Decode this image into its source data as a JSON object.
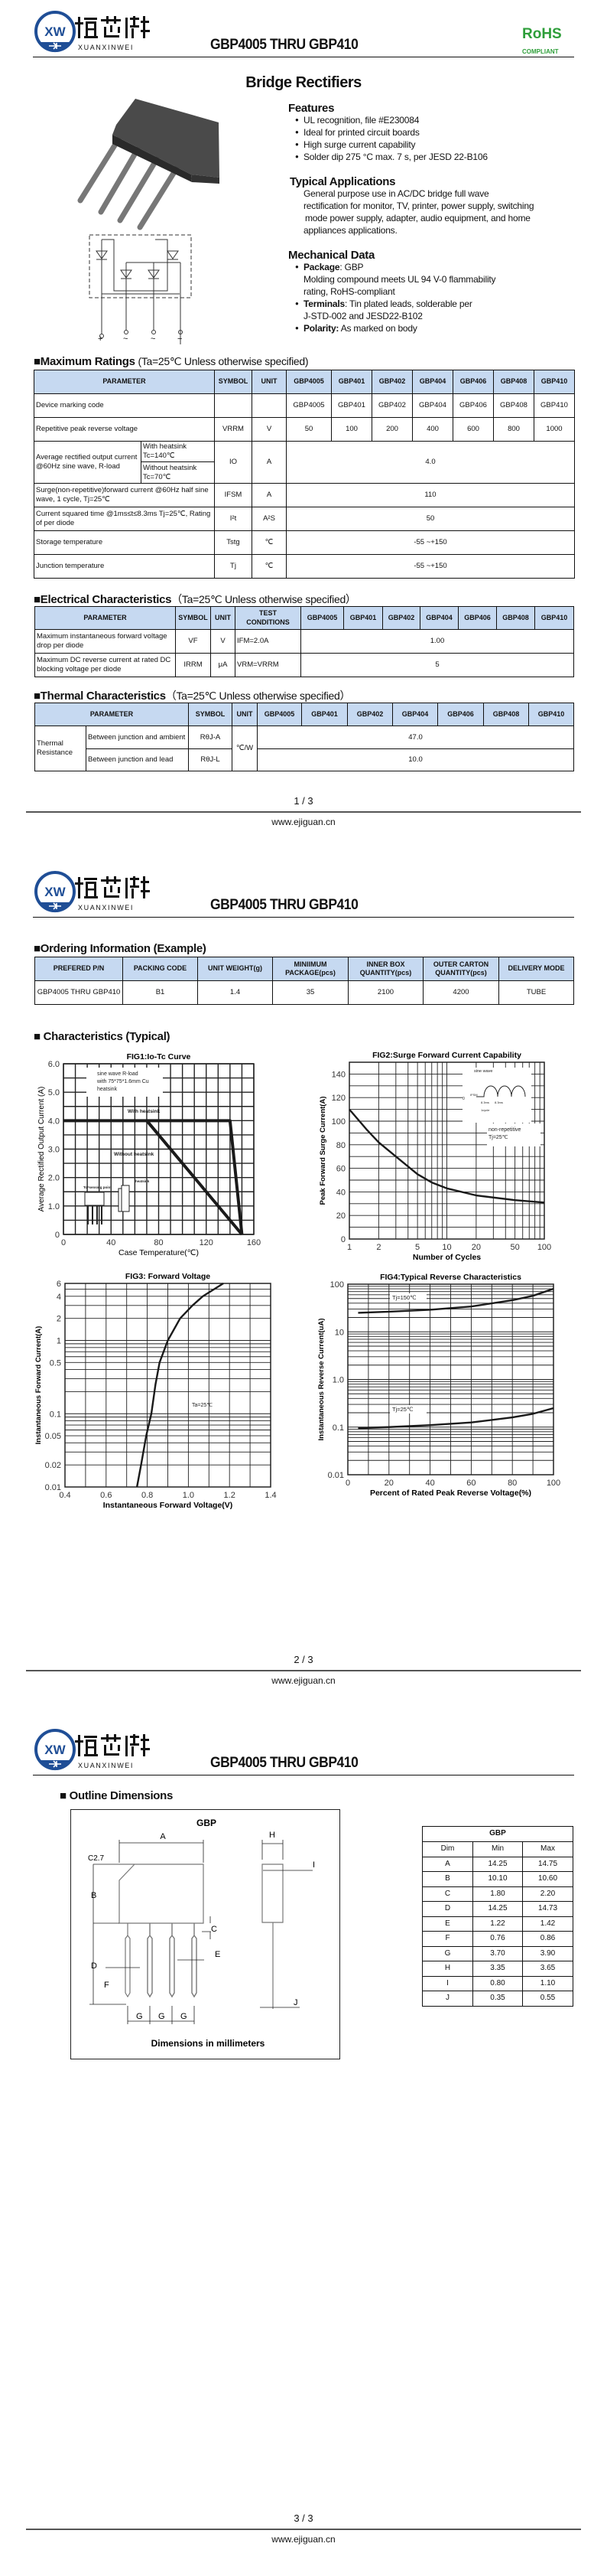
{
  "header": {
    "logo_mark": "XW",
    "logo_cn": "烜芯微",
    "logo_en": "XUANXINWEI",
    "title": "GBP4005 THRU GBP410",
    "rohs": "RoHS",
    "compliant": "COMPLIANT",
    "brand_blue": "#1f4e96",
    "rohs_green": "#2e9e3a"
  },
  "page1": {
    "product_title": "Bridge Rectifiers",
    "features": {
      "heading": "Features",
      "items": [
        "UL recognition, file #E230084",
        "Ideal for printed circuit boards",
        "High surge current capability",
        "Solder dip 275 °C max. 7 s, per JESD 22-B106"
      ]
    },
    "applications": {
      "heading": "Typical Applications",
      "lines": [
        "General purpose use in AC/DC bridge full wave",
        "rectification for monitor, TV, printer, power supply, switching",
        "mode power supply, adapter, audio equipment, and home",
        "appliances applications."
      ]
    },
    "mechanical": {
      "heading": "Mechanical Data",
      "package_label": "Package",
      "package_value": ": GBP",
      "molding_lines": [
        "Molding compound meets UL 94 V-0 flammability",
        "rating, RoHS-compliant"
      ],
      "terminals_label": "Terminals",
      "terminals_value": ": Tin plated leads, solderable  per",
      "terminals_line2": "J-STD-002 and JESD22-B102",
      "polarity_label": "Polarity:",
      "polarity_value": " As marked on body"
    },
    "circuit_terminals": [
      "+",
      "~",
      "~",
      "−"
    ]
  },
  "max_ratings": {
    "title": "■Maximum Ratings",
    "condition": "(Ta=25℃ Unless otherwise specified)",
    "headers": [
      "PARAMETER",
      "SYMBOL",
      "UNIT"
    ],
    "models": [
      "GBP4005",
      "GBP401",
      "GBP402",
      "GBP404",
      "GBP406",
      "GBP408",
      "GBP410"
    ],
    "marking": {
      "param": "Device marking code",
      "values": [
        "GBP4005",
        "GBP401",
        "GBP402",
        "GBP404",
        "GBP406",
        "GBP408",
        "GBP410"
      ]
    },
    "vrrm": {
      "param": "Repetitive peak reverse voltage",
      "symbol": "VRRM",
      "unit": "V",
      "values": [
        "50",
        "100",
        "200",
        "400",
        "600",
        "800",
        "1000"
      ]
    },
    "io": {
      "param": "Average rectified output current @60Hz sine wave, R-load",
      "cond1": "With heatsink Tc=140℃",
      "cond2": "Without heatsink Tc=70℃",
      "symbol": "IO",
      "unit": "A",
      "value": "4.0"
    },
    "ifsm": {
      "param": "Surge(non-repetitive)forward current @60Hz half sine wave, 1 cycle, Tj=25℃",
      "symbol": "IFSM",
      "unit": "A",
      "value": "110"
    },
    "i2t": {
      "param": "Current squared time @1ms≤t≤8.3ms Tj=25℃, Rating of per diode",
      "symbol": "I²t",
      "unit": "A²S",
      "value": "50"
    },
    "tstg": {
      "param": "Storage temperature",
      "symbol": "Tstg",
      "unit": "℃",
      "value": "-55 ~+150"
    },
    "tj": {
      "param": "Junction temperature",
      "symbol": "Tj",
      "unit": "℃",
      "value": "-55 ~+150"
    }
  },
  "electrical": {
    "title": "■Electrical Characteristics",
    "condition": "（Ta=25℃ Unless otherwise specified）",
    "headers": [
      "PARAMETER",
      "SYMBOL",
      "UNIT",
      "TEST CONDITIONS"
    ],
    "rows": [
      {
        "param": "Maximum instantaneous forward voltage drop per diode",
        "symbol": "VF",
        "unit": "V",
        "cond": "IFM=2.0A",
        "value": "1.00"
      },
      {
        "param": "Maximum DC reverse current at rated DC blocking voltage per diode",
        "symbol": "IRRM",
        "unit": "μA",
        "cond": "VRM=VRRM",
        "value": "5"
      }
    ]
  },
  "thermal": {
    "title": "■Thermal Characteristics",
    "condition": "（Ta=25℃ Unless otherwise specified）",
    "headers": [
      "PARAMETER",
      "SYMBOL",
      "UNIT"
    ],
    "group": "Thermal Resistance",
    "unit": "℃/W",
    "rows": [
      {
        "param": "Between junction and ambient",
        "symbol": "RθJ-A",
        "value": "47.0"
      },
      {
        "param": "Between junction and lead",
        "symbol": "RθJ-L",
        "value": "10.0"
      }
    ]
  },
  "ordering": {
    "title": "■Ordering Information (Example)",
    "headers": [
      "PREFERED P/N",
      "PACKING CODE",
      "UNIT WEIGHT(g)",
      "MINIIMUM PACKAGE(pcs)",
      "INNER BOX QUANTITY(pcs)",
      "OUTER CARTON QUANTITY(pcs)",
      "DELIVERY MODE"
    ],
    "row": [
      "GBP4005 THRU GBP410",
      "B1",
      "1.4",
      "35",
      "2100",
      "4200",
      "TUBE"
    ]
  },
  "characteristics_title": "■ Characteristics (Typical)",
  "chart_data": [
    {
      "type": "line",
      "title": "FIG1:Io-Tc Curve",
      "xlabel": "Case Temperature(℃)",
      "ylabel": "Average Rectified Output Current (A)",
      "xlim": [
        0,
        160
      ],
      "ylim": [
        0,
        6
      ],
      "xscale": "linear",
      "yscale": "linear",
      "grid": true,
      "xticks": [
        "0",
        "40",
        "80",
        "120",
        "160"
      ],
      "yticks": [
        "0",
        "1.0",
        "2.0",
        "3.0",
        "4.0",
        "5.0",
        "6.0"
      ],
      "series": [
        {
          "name": "With heatsink",
          "points": [
            [
              0,
              4
            ],
            [
              140,
              4
            ],
            [
              150,
              0
            ]
          ]
        },
        {
          "name": "Without heatsink",
          "points": [
            [
              70,
              4
            ],
            [
              150,
              0
            ]
          ]
        }
      ],
      "annotations": [
        "sine wave R-load",
        "with 75*75*1.6mm Cu",
        "heatsink",
        "Tc=sensing point",
        "heatsink"
      ]
    },
    {
      "type": "line",
      "title": "FIG2:Surge Forward Current Capability",
      "xlabel": "Number of Cycles",
      "ylabel": "Peak Forward Surge Current(A)",
      "xlim": [
        1,
        100
      ],
      "ylim": [
        0,
        150
      ],
      "xscale": "log",
      "yscale": "linear",
      "grid": true,
      "xticks": [
        "1",
        "2",
        "5",
        "10",
        "20",
        "50",
        "100"
      ],
      "yticks": [
        "0",
        "20",
        "40",
        "60",
        "80",
        "100",
        "120",
        "140"
      ],
      "series": [
        {
          "points": [
            [
              1,
              110
            ],
            [
              1.5,
              93
            ],
            [
              2,
              82
            ],
            [
              3,
              70
            ],
            [
              5,
              55
            ],
            [
              7,
              48
            ],
            [
              10,
              43
            ],
            [
              20,
              37
            ],
            [
              50,
              33
            ],
            [
              100,
              31
            ]
          ]
        }
      ],
      "annotations": [
        "sine wave",
        "IFSM",
        "0",
        "8.3ms",
        "8.3ms",
        "1cycle",
        "non-repetitive",
        "Tj=25℃"
      ]
    },
    {
      "type": "line",
      "title": "FIG3: Forward Voltage",
      "xlabel": "Instantaneous Forward Voltage(V)",
      "ylabel": "Instantaneous Forward Current(A)",
      "xlim": [
        0.4,
        1.4
      ],
      "ylim": [
        0.01,
        6
      ],
      "xscale": "linear",
      "yscale": "log",
      "grid": true,
      "xticks": [
        "0.4",
        "0.6",
        "0.8",
        "1.0",
        "1.2",
        "1.4"
      ],
      "yticks": [
        "0.01",
        "0.02",
        "0.05",
        "0.1",
        "0.5",
        "1",
        "2",
        "4",
        "6"
      ],
      "series": [
        {
          "points": [
            [
              0.75,
              0.01
            ],
            [
              0.77,
              0.02
            ],
            [
              0.795,
              0.05
            ],
            [
              0.82,
              0.1
            ],
            [
              0.84,
              0.25
            ],
            [
              0.86,
              0.5
            ],
            [
              0.9,
              1
            ],
            [
              0.96,
              2
            ],
            [
              1.02,
              3
            ],
            [
              1.07,
              4
            ],
            [
              1.17,
              6
            ]
          ]
        }
      ],
      "annotations": [
        "Ta=25℃"
      ]
    },
    {
      "type": "line",
      "title": "FIG4:Typical Reverse Characteristics",
      "xlabel": "Percent of Rated Peak Reverse Voltage(%)",
      "ylabel": "Instantaneous Reverse Current(uA)",
      "xlim": [
        0,
        100
      ],
      "ylim": [
        0.01,
        100
      ],
      "xscale": "linear",
      "yscale": "log",
      "grid": true,
      "xticks": [
        "0",
        "20",
        "40",
        "60",
        "80",
        "100"
      ],
      "yticks": [
        "0.01",
        "0.1",
        "1.0",
        "10",
        "100"
      ],
      "series": [
        {
          "name": "Tj=150℃",
          "points": [
            [
              5,
              25
            ],
            [
              20,
              26.5
            ],
            [
              40,
              29
            ],
            [
              60,
              34
            ],
            [
              80,
              46
            ],
            [
              90,
              57
            ],
            [
              100,
              80
            ]
          ]
        },
        {
          "name": "Tj=25℃",
          "points": [
            [
              5,
              0.095
            ],
            [
              20,
              0.1
            ],
            [
              40,
              0.11
            ],
            [
              60,
              0.125
            ],
            [
              80,
              0.16
            ],
            [
              90,
              0.19
            ],
            [
              100,
              0.25
            ]
          ]
        }
      ]
    }
  ],
  "outline": {
    "title": "■ Outline Dimensions",
    "package": "GBP",
    "caption": "Dimensions in millimeters",
    "chamfer": "C2.7",
    "labels": [
      "A",
      "B",
      "C",
      "D",
      "E",
      "F",
      "G",
      "G",
      "G",
      "H",
      "I",
      "J"
    ],
    "table": {
      "title": "GBP",
      "headers": [
        "Dim",
        "Min",
        "Max"
      ],
      "rows": [
        [
          "A",
          "14.25",
          "14.75"
        ],
        [
          "B",
          "10.10",
          "10.60"
        ],
        [
          "C",
          "1.80",
          "2.20"
        ],
        [
          "D",
          "14.25",
          "14.73"
        ],
        [
          "E",
          "1.22",
          "1.42"
        ],
        [
          "F",
          "0.76",
          "0.86"
        ],
        [
          "G",
          "3.70",
          "3.90"
        ],
        [
          "H",
          "3.35",
          "3.65"
        ],
        [
          "I",
          "0.80",
          "1.10"
        ],
        [
          "J",
          "0.35",
          "0.55"
        ]
      ]
    }
  },
  "footer": {
    "pages": [
      "1 / 3",
      "2 / 3",
      "3 / 3"
    ],
    "website": "www.ejiguan.cn"
  }
}
